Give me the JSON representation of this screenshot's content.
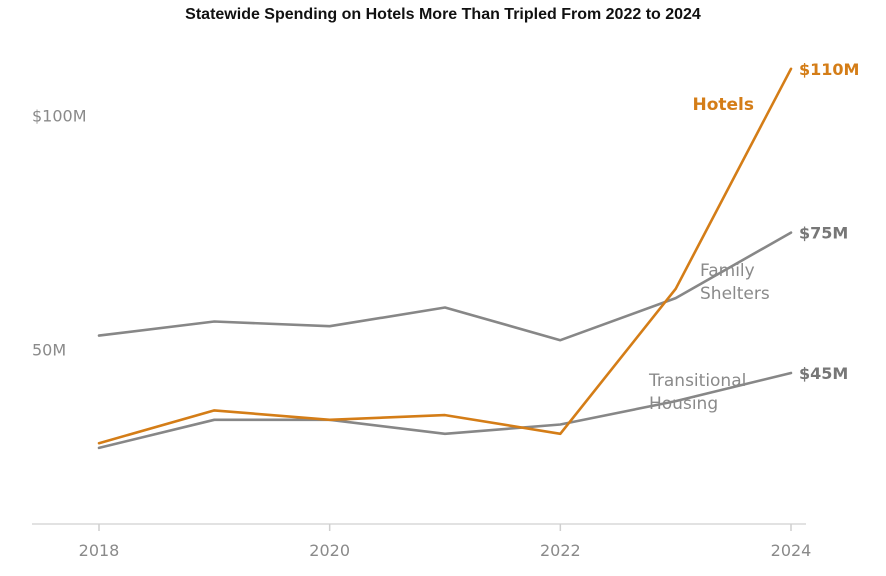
{
  "chart_data": {
    "type": "line",
    "title": "Statewide Spending on Hotels More Than Tripled From 2022 to 2024",
    "xlabel": "",
    "ylabel": "",
    "x": [
      2018,
      2019,
      2020,
      2021,
      2022,
      2023,
      2024
    ],
    "x_tick_labels": [
      "2018",
      "2020",
      "2022",
      "2024"
    ],
    "x_tick_values": [
      2018,
      2020,
      2022,
      2024
    ],
    "y_tick_labels": [
      "$100M",
      "50M"
    ],
    "y_tick_values": [
      100,
      50
    ],
    "ylim": [
      0,
      115
    ],
    "grid": false,
    "series": [
      {
        "name": "Family Shelters",
        "label_lines": [
          "Family",
          "Shelters"
        ],
        "values": [
          53,
          56,
          55,
          59,
          52,
          61,
          75
        ],
        "end_label": "$75M",
        "color": "#878787"
      },
      {
        "name": "Transitional Housing",
        "label_lines": [
          "Transitional",
          "Housing"
        ],
        "values": [
          29,
          35,
          35,
          32,
          34,
          39,
          45
        ],
        "end_label": "$45M",
        "color": "#878787"
      },
      {
        "name": "Hotels",
        "label_lines": [
          "Hotels"
        ],
        "values": [
          30,
          37,
          35,
          36,
          32,
          63,
          110
        ],
        "end_label": "$110M",
        "color": "#d47d17"
      }
    ]
  }
}
